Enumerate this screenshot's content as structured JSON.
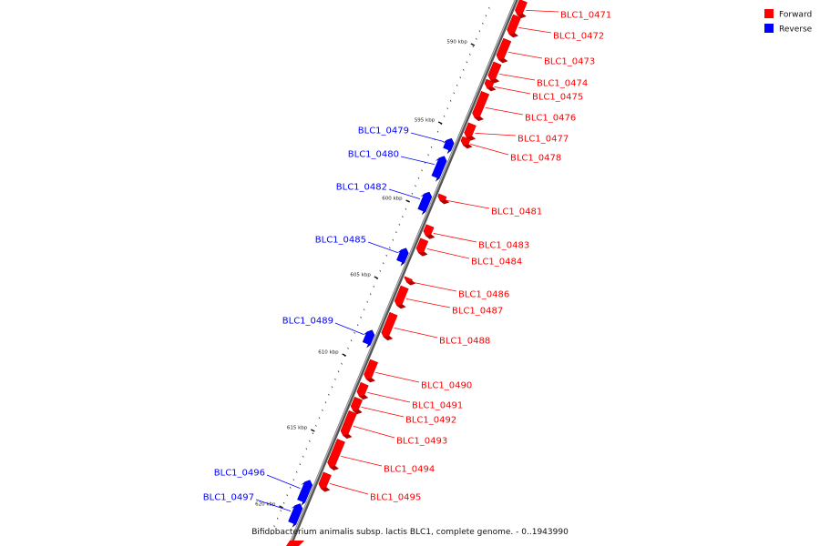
{
  "caption": "Bifidobacterium animalis subsp. lactis BLC1, complete genome. - 0..1943990",
  "colors": {
    "forward": "#ff0000",
    "reverse": "#0000ff",
    "backbone": "#777777"
  },
  "legend": [
    {
      "label": "Forward",
      "strand": "forward"
    },
    {
      "label": "Reverse",
      "strand": "reverse"
    }
  ],
  "ticks": [
    "590 kbp",
    "595 kbp",
    "600 kbp",
    "605 kbp",
    "610 kbp",
    "615 kbp",
    "620 kbp"
  ],
  "genes": [
    {
      "id": "BLC1_0471",
      "strand": "forward"
    },
    {
      "id": "BLC1_0472",
      "strand": "forward"
    },
    {
      "id": "BLC1_0473",
      "strand": "forward"
    },
    {
      "id": "BLC1_0474",
      "strand": "forward"
    },
    {
      "id": "BLC1_0475",
      "strand": "forward"
    },
    {
      "id": "BLC1_0476",
      "strand": "forward"
    },
    {
      "id": "BLC1_0477",
      "strand": "forward"
    },
    {
      "id": "BLC1_0478",
      "strand": "forward"
    },
    {
      "id": "BLC1_0479",
      "strand": "reverse"
    },
    {
      "id": "BLC1_0480",
      "strand": "reverse"
    },
    {
      "id": "BLC1_0481",
      "strand": "forward"
    },
    {
      "id": "BLC1_0482",
      "strand": "reverse"
    },
    {
      "id": "BLC1_0483",
      "strand": "forward"
    },
    {
      "id": "BLC1_0484",
      "strand": "forward"
    },
    {
      "id": "BLC1_0485",
      "strand": "reverse"
    },
    {
      "id": "BLC1_0486",
      "strand": "forward"
    },
    {
      "id": "BLC1_0487",
      "strand": "forward"
    },
    {
      "id": "BLC1_0488",
      "strand": "forward"
    },
    {
      "id": "BLC1_0489",
      "strand": "reverse"
    },
    {
      "id": "BLC1_0490",
      "strand": "forward"
    },
    {
      "id": "BLC1_0491",
      "strand": "forward"
    },
    {
      "id": "BLC1_0492",
      "strand": "forward"
    },
    {
      "id": "BLC1_0493",
      "strand": "forward"
    },
    {
      "id": "BLC1_0494",
      "strand": "forward"
    },
    {
      "id": "BLC1_0495",
      "strand": "forward"
    },
    {
      "id": "BLC1_0496",
      "strand": "reverse"
    },
    {
      "id": "BLC1_0497",
      "strand": "reverse"
    }
  ]
}
